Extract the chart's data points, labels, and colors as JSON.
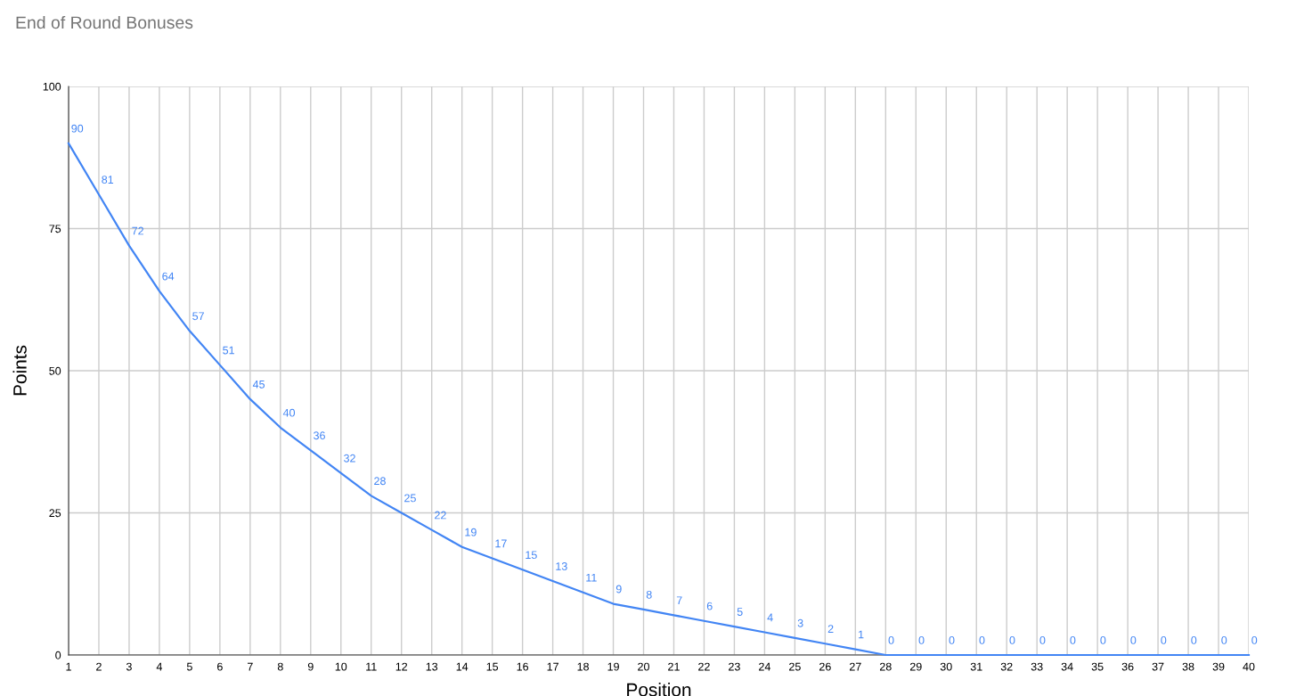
{
  "chart_data": {
    "type": "line",
    "title": "End of Round Bonuses",
    "xlabel": "Position",
    "ylabel": "Points",
    "categories": [
      "1",
      "2",
      "3",
      "4",
      "5",
      "6",
      "7",
      "8",
      "9",
      "10",
      "11",
      "12",
      "13",
      "14",
      "15",
      "16",
      "17",
      "18",
      "19",
      "20",
      "21",
      "22",
      "23",
      "24",
      "25",
      "26",
      "27",
      "28",
      "29",
      "30",
      "31",
      "32",
      "33",
      "34",
      "35",
      "36",
      "37",
      "38",
      "39",
      "40"
    ],
    "series": [
      {
        "color": "#4285f4",
        "values": [
          90,
          81,
          72,
          64,
          57,
          51,
          45,
          40,
          36,
          32,
          28,
          25,
          22,
          19,
          17,
          15,
          13,
          11,
          9,
          8,
          7,
          6,
          5,
          4,
          3,
          2,
          1,
          0,
          0,
          0,
          0,
          0,
          0,
          0,
          0,
          0,
          0,
          0,
          0,
          0
        ]
      }
    ],
    "ylim": [
      0,
      100
    ],
    "yticks": [
      0,
      25,
      50,
      75,
      100
    ],
    "grid": true,
    "data_labels": true,
    "legend": false,
    "marker": "none",
    "line_style": "solid"
  }
}
